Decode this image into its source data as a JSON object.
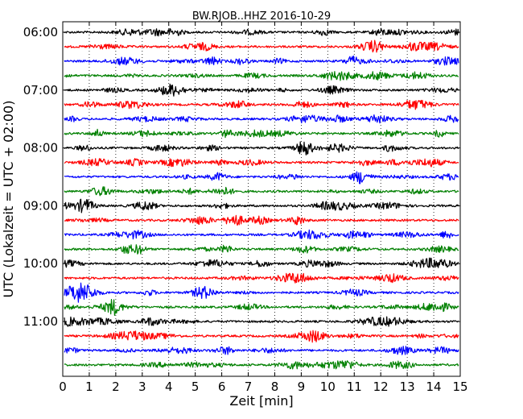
{
  "chart_data": {
    "type": "line",
    "title": "BW.RJOB..HHZ 2016-10-29",
    "xlabel": "Zeit  [min]",
    "ylabel": "UTC (Lokalzeit = UTC + 02:00)",
    "xlim": [
      0,
      15
    ],
    "x_ticks": [
      "0",
      "1",
      "2",
      "3",
      "4",
      "5",
      "6",
      "7",
      "8",
      "9",
      "10",
      "11",
      "12",
      "13",
      "14",
      "15"
    ],
    "y_ticks": [
      "06:00",
      "07:00",
      "08:00",
      "09:00",
      "10:00",
      "11:00"
    ],
    "traces_per_hour": 4,
    "trace_count": 24,
    "trace_colors": [
      "#000000",
      "#ff0000",
      "#0000ff",
      "#008000"
    ],
    "grid": "vertical dotted lines at each minute"
  }
}
